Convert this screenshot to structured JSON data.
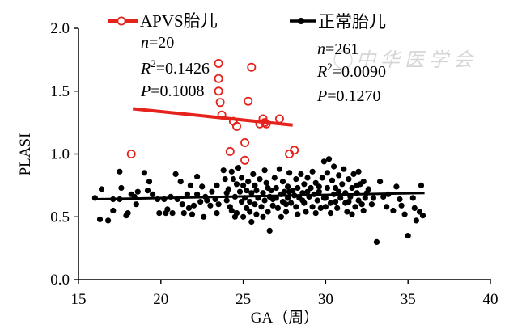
{
  "watermark": {
    "text": "中华医学会"
  },
  "chart_data": {
    "type": "scatter",
    "title": "",
    "xlabel": "GA（周）",
    "ylabel": "PLASI",
    "xlim": [
      15,
      40
    ],
    "ylim": [
      0,
      2
    ],
    "xtick_labels": [
      "15",
      "20",
      "25",
      "30",
      "35",
      "40"
    ],
    "ytick_labels": [
      "0.0",
      "0.5",
      "1.0",
      "1.5",
      "2.0"
    ],
    "grid": false,
    "legend_position": "top",
    "series": [
      {
        "name": "APVS胎儿",
        "color": "#e5221c",
        "marker": "open-circle",
        "stats": [
          {
            "sym": "n",
            "sup": "",
            "val": "=20"
          },
          {
            "sym": "R",
            "sup": "2",
            "val": "=0.1426"
          },
          {
            "sym": "P",
            "sup": "",
            "val": "=0.1008"
          }
        ],
        "fit": {
          "x": [
            18.3,
            28.0
          ],
          "y": [
            1.36,
            1.23
          ]
        },
        "points": [
          [
            18.2,
            1.0
          ],
          [
            23.5,
            1.72
          ],
          [
            25.5,
            1.69
          ],
          [
            23.5,
            1.6
          ],
          [
            23.5,
            1.5
          ],
          [
            23.6,
            1.41
          ],
          [
            23.7,
            1.31
          ],
          [
            25.3,
            1.42
          ],
          [
            24.4,
            1.26
          ],
          [
            24.6,
            1.22
          ],
          [
            26.2,
            1.28
          ],
          [
            26.4,
            1.24
          ],
          [
            26.0,
            1.24
          ],
          [
            27.2,
            1.28
          ],
          [
            24.2,
            1.02
          ],
          [
            25.1,
            1.09
          ],
          [
            25.1,
            0.95
          ],
          [
            27.8,
            1.0
          ],
          [
            28.1,
            1.03
          ],
          [
            26.3,
            1.25
          ]
        ]
      },
      {
        "name": "正常胎儿",
        "color": "#000000",
        "marker": "filled-circle",
        "stats": [
          {
            "sym": "n",
            "sup": "",
            "val": "=261"
          },
          {
            "sym": "R",
            "sup": "2",
            "val": "=0.0090"
          },
          {
            "sym": "P",
            "sup": "",
            "val": "=0.1270"
          }
        ],
        "fit": {
          "x": [
            16.0,
            36.0
          ],
          "y": [
            0.64,
            0.69
          ]
        },
        "points": [
          [
            16.0,
            0.65
          ],
          [
            16.3,
            0.48
          ],
          [
            16.4,
            0.72
          ],
          [
            16.8,
            0.47
          ],
          [
            17.1,
            0.55
          ],
          [
            17.1,
            0.64
          ],
          [
            17.5,
            0.86
          ],
          [
            17.6,
            0.73
          ],
          [
            17.5,
            0.64
          ],
          [
            17.9,
            0.51
          ],
          [
            18.0,
            0.53
          ],
          [
            18.2,
            0.68
          ],
          [
            18.4,
            0.66
          ],
          [
            18.5,
            0.6
          ],
          [
            18.6,
            0.7
          ],
          [
            19.0,
            0.85
          ],
          [
            19.2,
            0.71
          ],
          [
            19.3,
            0.78
          ],
          [
            19.5,
            0.68
          ],
          [
            19.8,
            0.64
          ],
          [
            19.9,
            0.53
          ],
          [
            20.2,
            0.64
          ],
          [
            20.3,
            0.53
          ],
          [
            20.4,
            0.56
          ],
          [
            20.6,
            0.66
          ],
          [
            20.7,
            0.53
          ],
          [
            20.9,
            0.84
          ],
          [
            21.0,
            0.64
          ],
          [
            21.2,
            0.78
          ],
          [
            21.3,
            0.6
          ],
          [
            21.4,
            0.53
          ],
          [
            21.6,
            0.68
          ],
          [
            21.7,
            0.57
          ],
          [
            21.8,
            0.75
          ],
          [
            21.9,
            0.52
          ],
          [
            22.0,
            0.59
          ],
          [
            22.2,
            0.82
          ],
          [
            22.2,
            0.68
          ],
          [
            22.4,
            0.62
          ],
          [
            22.5,
            0.74
          ],
          [
            22.6,
            0.5
          ],
          [
            22.7,
            0.66
          ],
          [
            22.8,
            0.63
          ],
          [
            23.0,
            0.59
          ],
          [
            23.1,
            0.7
          ],
          [
            23.3,
            0.64
          ],
          [
            23.4,
            0.53
          ],
          [
            23.4,
            0.75
          ],
          [
            23.5,
            0.6
          ],
          [
            23.8,
            0.87
          ],
          [
            23.9,
            0.8
          ],
          [
            24.0,
            0.69
          ],
          [
            24.0,
            0.63
          ],
          [
            24.1,
            0.72
          ],
          [
            24.2,
            0.58
          ],
          [
            24.3,
            0.86
          ],
          [
            24.4,
            0.8
          ],
          [
            24.5,
            0.66
          ],
          [
            24.6,
            0.76
          ],
          [
            24.6,
            0.53
          ],
          [
            24.7,
            0.89
          ],
          [
            24.8,
            0.7
          ],
          [
            24.9,
            0.62
          ],
          [
            24.9,
            0.81
          ],
          [
            24.3,
            0.55
          ],
          [
            24.5,
            0.5
          ],
          [
            25.0,
            0.5
          ],
          [
            25.0,
            0.75
          ],
          [
            25.1,
            0.65
          ],
          [
            25.2,
            0.71
          ],
          [
            25.2,
            0.57
          ],
          [
            25.3,
            0.78
          ],
          [
            25.4,
            0.62
          ],
          [
            25.4,
            0.54
          ],
          [
            25.5,
            0.69
          ],
          [
            25.6,
            0.84
          ],
          [
            25.7,
            0.6
          ],
          [
            25.7,
            0.75
          ],
          [
            25.8,
            0.52
          ],
          [
            25.9,
            0.65
          ],
          [
            25.5,
            0.46
          ],
          [
            25.8,
            0.71
          ],
          [
            26.0,
            0.8
          ],
          [
            26.1,
            0.58
          ],
          [
            26.2,
            0.69
          ],
          [
            26.3,
            0.87
          ],
          [
            26.3,
            0.63
          ],
          [
            26.4,
            0.77
          ],
          [
            26.5,
            0.54
          ],
          [
            26.6,
            0.39
          ],
          [
            26.6,
            0.66
          ],
          [
            26.7,
            0.71
          ],
          [
            26.8,
            0.59
          ],
          [
            26.9,
            0.81
          ],
          [
            26.2,
            0.5
          ],
          [
            26.5,
            0.73
          ],
          [
            26.8,
            0.64
          ],
          [
            27.0,
            0.65
          ],
          [
            27.0,
            0.73
          ],
          [
            27.1,
            0.57
          ],
          [
            27.2,
            0.88
          ],
          [
            27.3,
            0.68
          ],
          [
            27.4,
            0.62
          ],
          [
            27.4,
            0.78
          ],
          [
            27.5,
            0.7
          ],
          [
            27.6,
            0.54
          ],
          [
            27.7,
            0.65
          ],
          [
            27.7,
            0.74
          ],
          [
            27.8,
            0.85
          ],
          [
            27.9,
            0.61
          ],
          [
            27.3,
            0.5
          ],
          [
            27.6,
            0.6
          ],
          [
            27.8,
            0.7
          ],
          [
            28.0,
            0.71
          ],
          [
            28.1,
            0.67
          ],
          [
            28.2,
            0.8
          ],
          [
            28.2,
            0.58
          ],
          [
            28.3,
            0.73
          ],
          [
            28.4,
            0.65
          ],
          [
            28.5,
            0.84
          ],
          [
            28.6,
            0.69
          ],
          [
            28.7,
            0.61
          ],
          [
            28.7,
            0.76
          ],
          [
            28.8,
            0.54
          ],
          [
            28.9,
            0.81
          ],
          [
            28.3,
            0.52
          ],
          [
            28.6,
            0.63
          ],
          [
            28.9,
            0.7
          ],
          [
            29.0,
            0.66
          ],
          [
            29.1,
            0.73
          ],
          [
            29.2,
            0.58
          ],
          [
            29.2,
            0.86
          ],
          [
            29.3,
            0.68
          ],
          [
            29.4,
            0.77
          ],
          [
            29.5,
            0.63
          ],
          [
            29.6,
            0.7
          ],
          [
            29.7,
            0.57
          ],
          [
            29.8,
            0.81
          ],
          [
            29.9,
            0.94
          ],
          [
            29.4,
            0.53
          ],
          [
            29.6,
            0.74
          ],
          [
            29.9,
            0.65
          ],
          [
            30.0,
            0.65
          ],
          [
            30.1,
            0.73
          ],
          [
            30.1,
            0.85
          ],
          [
            30.2,
            0.96
          ],
          [
            30.3,
            0.61
          ],
          [
            30.4,
            0.79
          ],
          [
            30.5,
            0.68
          ],
          [
            30.5,
            0.9
          ],
          [
            30.6,
            0.73
          ],
          [
            30.7,
            0.57
          ],
          [
            30.8,
            0.83
          ],
          [
            30.9,
            0.65
          ],
          [
            30.3,
            0.53
          ],
          [
            30.6,
            0.62
          ],
          [
            30.8,
            0.7
          ],
          [
            30.0,
            0.58
          ],
          [
            31.0,
            0.76
          ],
          [
            31.1,
            0.88
          ],
          [
            31.2,
            0.61
          ],
          [
            31.2,
            0.69
          ],
          [
            31.3,
            0.54
          ],
          [
            31.4,
            0.8
          ],
          [
            31.5,
            0.66
          ],
          [
            31.6,
            0.73
          ],
          [
            31.7,
            0.84
          ],
          [
            31.8,
            0.58
          ],
          [
            31.9,
            0.69
          ],
          [
            31.4,
            0.62
          ],
          [
            31.6,
            0.52
          ],
          [
            31.9,
            0.75
          ],
          [
            32.0,
            0.86
          ],
          [
            32.0,
            0.63
          ],
          [
            32.1,
            0.76
          ],
          [
            32.2,
            0.6
          ],
          [
            32.3,
            0.78
          ],
          [
            32.4,
            0.65
          ],
          [
            32.5,
            0.69
          ],
          [
            32.3,
            0.55
          ],
          [
            32.6,
            0.72
          ],
          [
            32.8,
            0.6
          ],
          [
            32.9,
            0.65
          ],
          [
            33.1,
            0.3
          ],
          [
            33.3,
            0.78
          ],
          [
            33.5,
            0.66
          ],
          [
            33.7,
            0.58
          ],
          [
            33.8,
            0.68
          ],
          [
            34.1,
            0.55
          ],
          [
            34.3,
            0.74
          ],
          [
            34.5,
            0.64
          ],
          [
            34.6,
            0.59
          ],
          [
            34.8,
            0.52
          ],
          [
            35.0,
            0.35
          ],
          [
            35.3,
            0.65
          ],
          [
            35.4,
            0.57
          ],
          [
            35.5,
            0.47
          ],
          [
            35.7,
            0.54
          ],
          [
            35.8,
            0.75
          ],
          [
            35.9,
            0.51
          ]
        ]
      }
    ]
  }
}
